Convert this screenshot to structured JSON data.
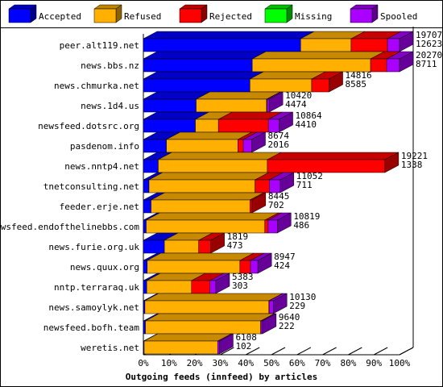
{
  "chart_data": {
    "type": "bar",
    "orientation": "horizontal",
    "stacked": true,
    "percent_stacked": true,
    "style": "3d",
    "xlabel": "Outgoing feeds (innfeed) by articles",
    "ylabel": "",
    "xlim": [
      0,
      100
    ],
    "x_ticks": [
      "0%",
      "10%",
      "20%",
      "30%",
      "40%",
      "50%",
      "60%",
      "70%",
      "80%",
      "90%",
      "100%"
    ],
    "legend_position": "top",
    "grid": false,
    "categories": [
      "peer.alt119.net",
      "news.bbs.nz",
      "news.chmurka.net",
      "news.1d4.us",
      "newsfeed.dotsrc.org",
      "pasdenom.info",
      "news.nntp4.net",
      "tnetconsulting.net",
      "feeder.erje.net",
      "newsfeed.endofthelinebbs.com",
      "news.furie.org.uk",
      "news.quux.org",
      "nntp.terraraq.uk",
      "news.samoylyk.net",
      "newsfeed.bofh.team",
      "weretis.net"
    ],
    "series": [
      {
        "name": "Accepted",
        "color": "#0000ff",
        "values": [
          61.4,
          42.5,
          41.6,
          20.6,
          20.3,
          9.0,
          5.8,
          2.2,
          3.0,
          1.1,
          8.2,
          1.5,
          1.3,
          0.6,
          0.8,
          0.3
        ]
      },
      {
        "name": "Refused",
        "color": "#ffb000",
        "values": [
          19.7,
          46.2,
          24.1,
          27.5,
          9.0,
          27.9,
          42.6,
          41.4,
          38.6,
          46.3,
          13.4,
          36.2,
          17.5,
          48.4,
          45.0,
          28.7
        ]
      },
      {
        "name": "Rejected",
        "color": "#ff0000",
        "values": [
          14.2,
          6.3,
          6.8,
          0.2,
          19.5,
          2.1,
          45.9,
          5.6,
          0.8,
          1.3,
          4.7,
          4.1,
          7.2,
          0.1,
          0.1,
          0.0
        ]
      },
      {
        "name": "Missing",
        "color": "#00ff00",
        "values": [
          0,
          0,
          0,
          0,
          0,
          0,
          0,
          0,
          0,
          0,
          0,
          0,
          0,
          0,
          0,
          0
        ]
      },
      {
        "name": "Spooled",
        "color": "#aa00ff",
        "values": [
          4.7,
          5.0,
          0.0,
          0.8,
          4.2,
          3.3,
          0.0,
          4.2,
          0.0,
          3.6,
          0.0,
          2.9,
          2.3,
          1.6,
          0.6,
          0.7
        ]
      }
    ],
    "labels_top": [
      "19707",
      "20270",
      "14816",
      "10420",
      "10864",
      "8674",
      "19221",
      "11052",
      "8445",
      "10819",
      "1819",
      "8947",
      "5383",
      "10130",
      "9640",
      "6108"
    ],
    "labels_bottom": [
      "12623",
      "8711",
      "8585",
      "4474",
      "4410",
      "2016",
      "1338",
      "711",
      "702",
      "486",
      "473",
      "424",
      "303",
      "229",
      "222",
      "102"
    ]
  }
}
